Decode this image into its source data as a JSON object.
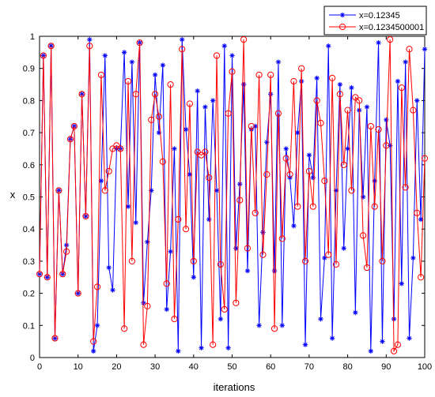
{
  "chart_data": {
    "type": "line",
    "title": "",
    "xlabel": "iterations",
    "ylabel": "x",
    "xlim": [
      0,
      100
    ],
    "ylim": [
      0,
      1
    ],
    "xticks": [
      "0",
      "10",
      "20",
      "30",
      "40",
      "50",
      "60",
      "70",
      "80",
      "90",
      "100"
    ],
    "yticks": [
      "0",
      "0.1",
      "0.2",
      "0.3",
      "0.4",
      "0.5",
      "0.6",
      "0.7",
      "0.8",
      "0.9",
      "1"
    ],
    "grid": false,
    "legend_position": "top-right",
    "x": [
      0,
      1,
      2,
      3,
      4,
      5,
      6,
      7,
      8,
      9,
      10,
      11,
      12,
      13,
      14,
      15,
      16,
      17,
      18,
      19,
      20,
      21,
      22,
      23,
      24,
      25,
      26,
      27,
      28,
      29,
      30,
      31,
      32,
      33,
      34,
      35,
      36,
      37,
      38,
      39,
      40,
      41,
      42,
      43,
      44,
      45,
      46,
      47,
      48,
      49,
      50,
      51,
      52,
      53,
      54,
      55,
      56,
      57,
      58,
      59,
      60,
      61,
      62,
      63,
      64,
      65,
      66,
      67,
      68,
      69,
      70,
      71,
      72,
      73,
      74,
      75,
      76,
      77,
      78,
      79,
      80,
      81,
      82,
      83,
      84,
      85,
      86,
      87,
      88,
      89,
      90,
      91,
      92,
      93,
      94,
      95,
      96,
      97,
      98,
      99,
      100
    ],
    "series": [
      {
        "name": "x=0.12345",
        "color": "#0000ff",
        "marker": "star",
        "values": [
          0.26,
          0.94,
          0.25,
          0.97,
          0.06,
          0.52,
          0.26,
          0.35,
          0.68,
          0.72,
          0.2,
          0.82,
          0.44,
          0.99,
          0.02,
          0.1,
          0.55,
          0.94,
          0.28,
          0.21,
          0.65,
          0.65,
          0.95,
          0.47,
          0.92,
          0.42,
          0.98,
          0.17,
          0.36,
          0.52,
          0.88,
          0.7,
          0.91,
          0.15,
          0.33,
          0.65,
          0.02,
          0.99,
          0.71,
          0.57,
          0.25,
          0.83,
          0.03,
          0.78,
          0.43,
          0.8,
          0.52,
          0.12,
          0.97,
          0.03,
          0.94,
          0.34,
          0.54,
          0.85,
          0.27,
          0.71,
          0.72,
          0.1,
          0.39,
          0.67,
          0.82,
          0.27,
          0.92,
          0.1,
          0.65,
          0.56,
          0.41,
          0.7,
          0.86,
          0.04,
          0.63,
          0.56,
          0.87,
          0.12,
          0.31,
          0.97,
          0.06,
          0.52,
          0.85,
          0.34,
          0.65,
          0.84,
          0.14,
          0.77,
          0.5,
          0.78,
          0.02,
          0.55,
          0.98,
          0.05,
          0.74,
          0.66,
          0.12,
          0.86,
          0.23,
          0.92,
          0.06,
          0.31,
          0.8,
          0.43,
          0.96
        ]
      },
      {
        "name": "x=0.1234500001",
        "color": "#ff0000",
        "marker": "circle",
        "values": [
          0.26,
          0.94,
          0.25,
          0.97,
          0.06,
          0.52,
          0.26,
          0.33,
          0.68,
          0.72,
          0.2,
          0.82,
          0.44,
          0.97,
          0.05,
          0.22,
          0.88,
          0.52,
          0.58,
          0.65,
          0.66,
          0.65,
          0.09,
          0.86,
          0.3,
          0.82,
          0.98,
          0.04,
          0.16,
          0.74,
          0.82,
          0.75,
          0.61,
          0.23,
          0.85,
          0.12,
          0.43,
          0.96,
          0.4,
          0.79,
          0.3,
          0.64,
          0.63,
          0.64,
          0.56,
          0.04,
          0.94,
          0.29,
          0.15,
          0.76,
          0.89,
          0.17,
          0.49,
          0.99,
          0.34,
          0.72,
          0.45,
          0.88,
          0.32,
          0.57,
          0.88,
          0.09,
          0.76,
          0.37,
          0.62,
          0.57,
          0.86,
          0.47,
          0.9,
          0.3,
          0.58,
          0.47,
          0.8,
          0.73,
          0.55,
          0.32,
          0.87,
          0.29,
          0.82,
          0.6,
          0.77,
          0.52,
          0.81,
          0.8,
          0.38,
          0.28,
          0.72,
          0.47,
          0.71,
          0.3,
          0.66,
          0.99,
          0.02,
          0.04,
          0.84,
          0.53,
          0.96,
          0.77,
          0.45,
          0.25,
          0.62
        ]
      }
    ]
  }
}
